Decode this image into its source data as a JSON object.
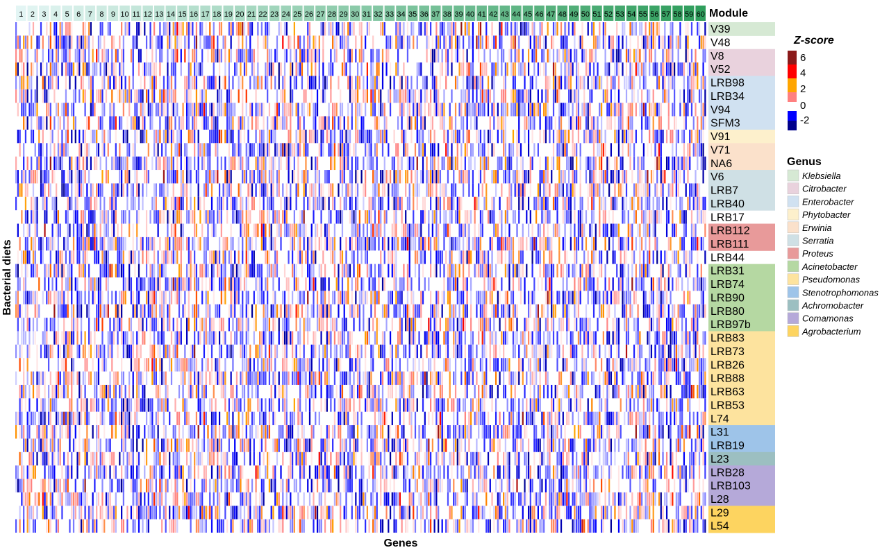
{
  "chart_data": {
    "type": "heatmap",
    "xlabel": "Genes",
    "ylabel": "Bacterial diets",
    "column_annotation_title": "Module",
    "modules": [
      "1",
      "2",
      "3",
      "4",
      "5",
      "6",
      "7",
      "8",
      "9",
      "10",
      "11",
      "12",
      "13",
      "14",
      "15",
      "16",
      "17",
      "18",
      "19",
      "20",
      "21",
      "22",
      "23",
      "24",
      "25",
      "26",
      "27",
      "28",
      "29",
      "30",
      "31",
      "32",
      "33",
      "34",
      "35",
      "36",
      "37",
      "38",
      "39",
      "40",
      "41",
      "42",
      "43",
      "44",
      "45",
      "46",
      "47",
      "48",
      "49",
      "50",
      "51",
      "52",
      "53",
      "54",
      "55",
      "56",
      "57",
      "58",
      "59",
      "60"
    ],
    "module_color_range": [
      "#e3f5f4",
      "#2f9e5c"
    ],
    "rows": [
      {
        "label": "V39",
        "genus": "Klebsiella"
      },
      {
        "label": "V48",
        "genus": ""
      },
      {
        "label": "V8",
        "genus": "Citrobacter"
      },
      {
        "label": "V52",
        "genus": "Citrobacter"
      },
      {
        "label": "LRB98",
        "genus": "Enterobacter"
      },
      {
        "label": "LRB34",
        "genus": "Enterobacter"
      },
      {
        "label": "V94",
        "genus": "Enterobacter"
      },
      {
        "label": "SFM3",
        "genus": "Enterobacter"
      },
      {
        "label": "V91",
        "genus": "Phytobacter"
      },
      {
        "label": "V71",
        "genus": "Erwinia"
      },
      {
        "label": "NA6",
        "genus": "Erwinia"
      },
      {
        "label": "V6",
        "genus": "Serratia"
      },
      {
        "label": "LRB7",
        "genus": "Serratia"
      },
      {
        "label": "LRB40",
        "genus": "Serratia"
      },
      {
        "label": "LRB17",
        "genus": ""
      },
      {
        "label": "LRB112",
        "genus": "Proteus"
      },
      {
        "label": "LRB111",
        "genus": "Proteus"
      },
      {
        "label": "LRB44",
        "genus": ""
      },
      {
        "label": "LRB31",
        "genus": "Acinetobacter"
      },
      {
        "label": "LRB74",
        "genus": "Acinetobacter"
      },
      {
        "label": "LRB90",
        "genus": "Acinetobacter"
      },
      {
        "label": "LRB80",
        "genus": "Acinetobacter"
      },
      {
        "label": "LRB97b",
        "genus": "Acinetobacter"
      },
      {
        "label": "LRB83",
        "genus": "Pseudomonas"
      },
      {
        "label": "LRB73",
        "genus": "Pseudomonas"
      },
      {
        "label": "LRB26",
        "genus": "Pseudomonas"
      },
      {
        "label": "LRB88",
        "genus": "Pseudomonas"
      },
      {
        "label": "LRB63",
        "genus": "Pseudomonas"
      },
      {
        "label": "LRB53",
        "genus": "Pseudomonas"
      },
      {
        "label": "L74",
        "genus": "Pseudomonas"
      },
      {
        "label": "L31",
        "genus": "Stenotrophomonas"
      },
      {
        "label": "LRB19",
        "genus": "Stenotrophomonas"
      },
      {
        "label": "L23",
        "genus": "Achromobacter"
      },
      {
        "label": "LRB28",
        "genus": "Comamonas"
      },
      {
        "label": "LRB103",
        "genus": "Comamonas"
      },
      {
        "label": "L28",
        "genus": "Comamonas"
      },
      {
        "label": "L29",
        "genus": "Agrobacterium"
      },
      {
        "label": "L54",
        "genus": "Agrobacterium"
      }
    ],
    "zscore_legend": {
      "title": "Z-score",
      "ticks": [
        "6",
        "4",
        "2",
        "0",
        "-2"
      ],
      "colors": [
        {
          "z": -3,
          "color": "#00008b"
        },
        {
          "z": -2,
          "color": "#0000ff"
        },
        {
          "z": 0,
          "color": "#ffffff"
        },
        {
          "z": 1,
          "color": "#ff8080"
        },
        {
          "z": 2,
          "color": "#ffa500"
        },
        {
          "z": 4,
          "color": "#ff0000"
        },
        {
          "z": 6,
          "color": "#8b1a1a"
        }
      ]
    },
    "genus_legend": {
      "title": "Genus",
      "items": [
        {
          "name": "Klebsiella",
          "color": "#d6e9d4"
        },
        {
          "name": "Citrobacter",
          "color": "#e9d2dd"
        },
        {
          "name": "Enterobacter",
          "color": "#d0e1f1"
        },
        {
          "name": "Phytobacter",
          "color": "#fdf0cc"
        },
        {
          "name": "Erwinia",
          "color": "#fbe1cb"
        },
        {
          "name": "Serratia",
          "color": "#cfe0e5"
        },
        {
          "name": "Proteus",
          "color": "#e89a9a"
        },
        {
          "name": "Acinetobacter",
          "color": "#b5d8a2"
        },
        {
          "name": "Pseudomonas",
          "color": "#fde39e"
        },
        {
          "name": "Stenotrophomonas",
          "color": "#9ec4e9"
        },
        {
          "name": "Achromobacter",
          "color": "#9cbfc1"
        },
        {
          "name": "Comamonas",
          "color": "#b5a9d9"
        },
        {
          "name": "Agrobacterium",
          "color": "#fdd460"
        }
      ]
    }
  }
}
